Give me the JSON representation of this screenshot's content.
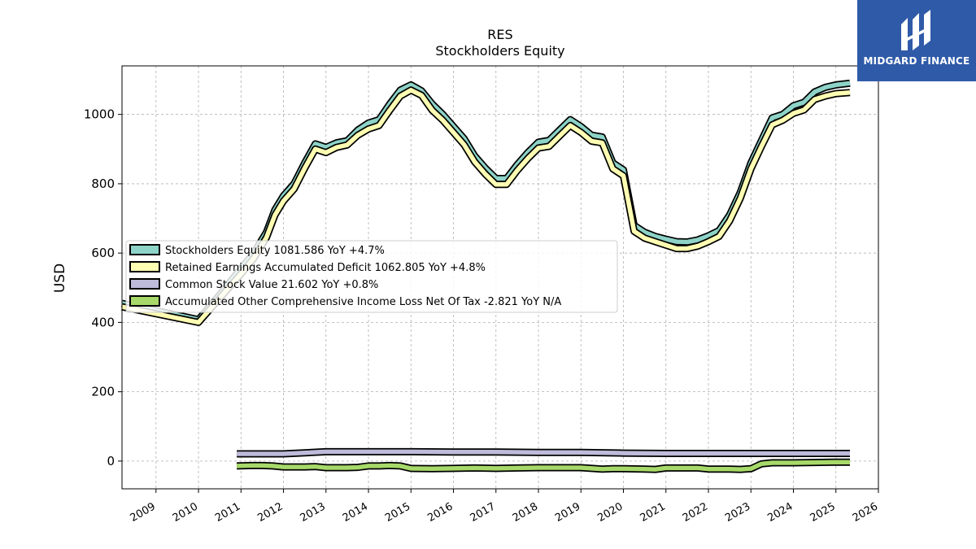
{
  "chart_data": {
    "type": "area",
    "title": "RES",
    "subtitle": "Stockholders  Equity",
    "ylabel": "USD",
    "xlabel": "",
    "xlim": [
      2008.2,
      2026.0
    ],
    "ylim": [
      -80,
      1140
    ],
    "y_ticks": [
      0,
      200,
      400,
      600,
      800,
      1000
    ],
    "x_ticks": [
      "2009",
      "2010",
      "2011",
      "2012",
      "2013",
      "2014",
      "2015",
      "2016",
      "2017",
      "2018",
      "2019",
      "2020",
      "2021",
      "2022",
      "2023",
      "2024",
      "2025",
      "2026"
    ],
    "grid": true,
    "legend_position": "center-left",
    "series": [
      {
        "name": "Stockholders Equity  1081.586 YoY +4.7%",
        "color": "#8dd3c7",
        "x": [
          2008.2,
          2010.0,
          2010.5,
          2011.0,
          2011.3,
          2011.6,
          2011.8,
          2012.0,
          2012.25,
          2012.5,
          2012.75,
          2013.0,
          2013.25,
          2013.5,
          2013.75,
          2014.0,
          2014.25,
          2014.5,
          2014.75,
          2015.0,
          2015.25,
          2015.5,
          2015.75,
          2016.0,
          2016.25,
          2016.5,
          2016.75,
          2017.0,
          2017.25,
          2017.5,
          2017.75,
          2018.0,
          2018.25,
          2018.5,
          2018.75,
          2019.0,
          2019.25,
          2019.5,
          2019.75,
          2020.0,
          2020.25,
          2020.5,
          2020.75,
          2021.0,
          2021.25,
          2021.5,
          2021.75,
          2022.0,
          2022.25,
          2022.5,
          2022.75,
          2023.0,
          2023.25,
          2023.5,
          2023.75,
          2024.0,
          2024.25,
          2024.5,
          2024.75,
          2025.0,
          2025.33
        ],
        "values": [
          455,
          408,
          480,
          555,
          600,
          660,
          725,
          765,
          800,
          860,
          915,
          905,
          918,
          924,
          955,
          975,
          985,
          1030,
          1070,
          1085,
          1068,
          1030,
          1000,
          965,
          930,
          880,
          845,
          815,
          815,
          855,
          890,
          920,
          925,
          955,
          985,
          965,
          940,
          935,
          860,
          840,
          680,
          660,
          648,
          640,
          633,
          632,
          638,
          650,
          665,
          710,
          775,
          860,
          925,
          990,
          1000,
          1025,
          1035,
          1065,
          1078,
          1085,
          1090
        ]
      },
      {
        "name": "Retained Earnings Accumulated Deficit  1062.805 YoY +4.8%",
        "color": "#ffffb3",
        "x": [
          2008.2,
          2010.0,
          2010.5,
          2011.0,
          2011.3,
          2011.6,
          2011.8,
          2012.0,
          2012.25,
          2012.5,
          2012.75,
          2013.0,
          2013.25,
          2013.5,
          2013.75,
          2014.0,
          2014.25,
          2014.5,
          2014.75,
          2015.0,
          2015.25,
          2015.5,
          2015.75,
          2016.0,
          2016.25,
          2016.5,
          2016.75,
          2017.0,
          2017.25,
          2017.5,
          2017.75,
          2018.0,
          2018.25,
          2018.5,
          2018.75,
          2019.0,
          2019.25,
          2019.5,
          2019.75,
          2020.0,
          2020.25,
          2020.5,
          2020.75,
          2021.0,
          2021.25,
          2021.5,
          2021.75,
          2022.0,
          2022.25,
          2022.5,
          2022.75,
          2023.0,
          2023.25,
          2023.5,
          2023.75,
          2024.0,
          2024.25,
          2024.5,
          2024.75,
          2025.0,
          2025.33
        ],
        "values": [
          445,
          400,
          470,
          540,
          585,
          645,
          710,
          750,
          785,
          845,
          900,
          890,
          905,
          912,
          940,
          958,
          968,
          1012,
          1053,
          1070,
          1055,
          1012,
          983,
          948,
          913,
          863,
          828,
          798,
          798,
          838,
          873,
          903,
          908,
          938,
          968,
          948,
          923,
          918,
          843,
          823,
          663,
          643,
          633,
          623,
          613,
          613,
          620,
          633,
          648,
          693,
          758,
          843,
          908,
          970,
          983,
          1003,
          1013,
          1043,
          1053,
          1060,
          1063
        ]
      },
      {
        "name": "Common Stock Value  21.602 YoY +0.8%",
        "color": "#bebada",
        "x": [
          2010.9,
          2011.5,
          2012.0,
          2012.5,
          2013.0,
          2014.0,
          2015.0,
          2016.0,
          2017.0,
          2018.0,
          2019.0,
          2020.0,
          2021.0,
          2022.0,
          2023.0,
          2024.0,
          2025.0,
          2025.33
        ],
        "values": [
          21,
          21,
          21,
          24,
          27,
          27,
          27,
          26,
          26,
          25,
          25,
          23,
          22,
          22,
          22,
          22,
          22,
          22
        ]
      },
      {
        "name": "Accumulated Other Comprehensive Income Loss Net Of Tax  -2.821 YoY N/A",
        "color": "#a6d96a",
        "x": [
          2010.9,
          2011.25,
          2011.5,
          2011.75,
          2012.0,
          2012.25,
          2012.5,
          2012.75,
          2013.0,
          2013.25,
          2013.5,
          2013.75,
          2014.0,
          2014.25,
          2014.5,
          2014.75,
          2015.0,
          2015.5,
          2016.0,
          2016.5,
          2017.0,
          2017.5,
          2018.0,
          2018.5,
          2019.0,
          2019.25,
          2019.5,
          2019.75,
          2020.0,
          2020.5,
          2020.75,
          2021.0,
          2021.5,
          2021.75,
          2022.0,
          2022.5,
          2022.75,
          2023.0,
          2023.25,
          2023.5,
          2024.0,
          2024.5,
          2025.0,
          2025.33
        ],
        "values": [
          -14,
          -13,
          -13,
          -14,
          -17,
          -17,
          -17,
          -16,
          -19,
          -19,
          -19,
          -18,
          -14,
          -14,
          -13,
          -14,
          -21,
          -22,
          -21,
          -20,
          -21,
          -20,
          -19,
          -19,
          -19,
          -21,
          -23,
          -22,
          -22,
          -23,
          -24,
          -20,
          -20,
          -20,
          -23,
          -23,
          -24,
          -22,
          -8,
          -5,
          -5,
          -4,
          -3,
          -3
        ]
      }
    ]
  },
  "logo": {
    "text": "MIDGARD FINANCE"
  }
}
